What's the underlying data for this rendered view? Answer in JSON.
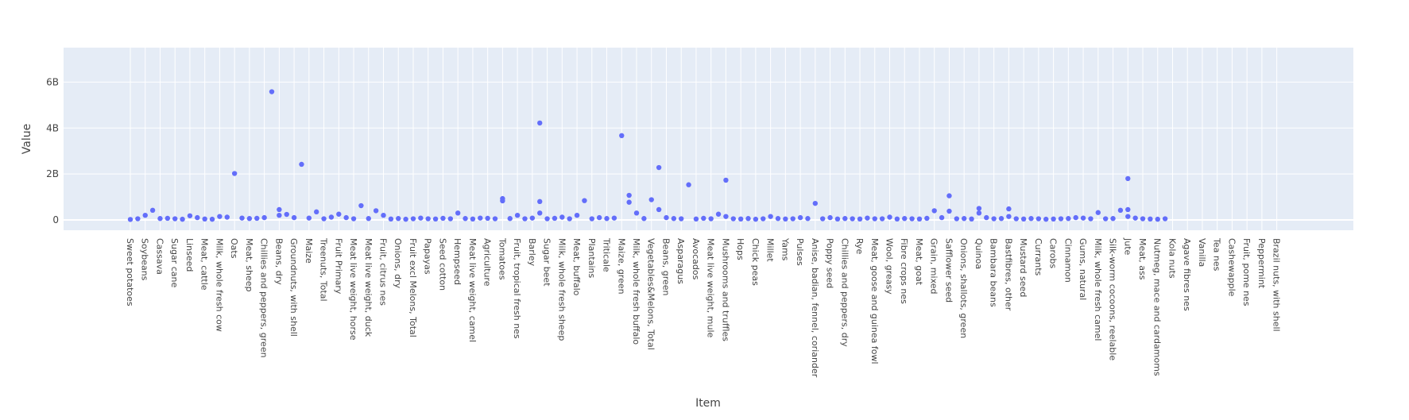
{
  "chart_data": {
    "type": "scatter",
    "title": "",
    "xlabel": "Item",
    "ylabel": "Value",
    "ylim": [
      -0.45,
      7.5
    ],
    "y_unit": "B",
    "yticks": [
      0,
      2,
      4,
      6
    ],
    "ytick_labels": [
      "0",
      "2B",
      "4B",
      "6B"
    ],
    "grid": true,
    "legend": "none",
    "marker_color": "#636efa",
    "plot_background": "#e5ecf6",
    "x_tick_labels": [
      "Sweet potatoes",
      "Soybeans",
      "Cassava",
      "Sugar cane",
      "Linseed",
      "Meat, cattle",
      "Milk, whole fresh cow",
      "Oats",
      "Meat, sheep",
      "Chillies and peppers, green",
      "Beans, dry",
      "Groundnuts, with shell",
      "Maize",
      "Treenuts, Total",
      "Fruit Primary",
      "Meat live weight, horse",
      "Meat live weight, duck",
      "Fruit, citrus nes",
      "Onions, dry",
      "Fruit excl Melons, Total",
      "Papayas",
      "Seed cotton",
      "Hempseed",
      "Meat live weight, camel",
      "Agriculture",
      "Tomatoes",
      "Fruit, tropical fresh nes",
      "Barley",
      "Sugar beet",
      "Milk, whole fresh sheep",
      "Meat, buffalo",
      "Plantains",
      "Triticale",
      "Maize, green",
      "Milk, whole fresh buffalo",
      "Vegetables&Melons, Total",
      "Beans, green",
      "Asparagus",
      "Avocados",
      "Meat live weight, mule",
      "Mushrooms and truffles",
      "Hops",
      "Chick peas",
      "Millet",
      "Yams",
      "Pulses",
      "Anise, badian, fennel, coriander",
      "Poppy seed",
      "Chillies and peppers, dry",
      "Rye",
      "Meat, goose and guinea fowl",
      "Wool, greasy",
      "Fibre crops nes",
      "Meat, goat",
      "Grain, mixed",
      "Safflower seed",
      "Onions, shallots, green",
      "Quinoa",
      "Bambara beans",
      "Bastfibres, other",
      "Mustard seed",
      "Currants",
      "Carobs",
      "Cinnamon",
      "Gums, natural",
      "Milk, whole fresh camel",
      "Silk-worm cocoons, reelable",
      "Jute",
      "Meat, ass",
      "Nutmeg, mace and cardamoms",
      "Kola nuts",
      "Agave fibres nes",
      "Vanilla",
      "Tea nes",
      "Cashewapple",
      "Fruit, pome nes",
      "Peppermint",
      "Brazil nuts, with shell"
    ],
    "x_categories_per_tick": 2,
    "x_category_count": 156,
    "points": [
      [
        0,
        0.02
      ],
      [
        1,
        0.05
      ],
      [
        2,
        0.2
      ],
      [
        3,
        0.42
      ],
      [
        4,
        0.06
      ],
      [
        5,
        0.07
      ],
      [
        6,
        0.05
      ],
      [
        7,
        0.03
      ],
      [
        8,
        0.18
      ],
      [
        9,
        0.1
      ],
      [
        10,
        0.04
      ],
      [
        11,
        0.03
      ],
      [
        12,
        0.15
      ],
      [
        13,
        0.12
      ],
      [
        14,
        2.02
      ],
      [
        15,
        0.08
      ],
      [
        16,
        0.06
      ],
      [
        17,
        0.07
      ],
      [
        18,
        0.1
      ],
      [
        19,
        5.58
      ],
      [
        20,
        0.45
      ],
      [
        20,
        0.2
      ],
      [
        21,
        0.24
      ],
      [
        22,
        0.1
      ],
      [
        23,
        2.42
      ],
      [
        24,
        0.08
      ],
      [
        25,
        0.35
      ],
      [
        26,
        0.05
      ],
      [
        27,
        0.12
      ],
      [
        28,
        0.25
      ],
      [
        29,
        0.1
      ],
      [
        30,
        0.05
      ],
      [
        31,
        0.62
      ],
      [
        32,
        0.06
      ],
      [
        33,
        0.4
      ],
      [
        34,
        0.2
      ],
      [
        35,
        0.04
      ],
      [
        36,
        0.06
      ],
      [
        37,
        0.03
      ],
      [
        38,
        0.05
      ],
      [
        39,
        0.08
      ],
      [
        40,
        0.05
      ],
      [
        41,
        0.04
      ],
      [
        42,
        0.07
      ],
      [
        43,
        0.05
      ],
      [
        44,
        0.3
      ],
      [
        45,
        0.06
      ],
      [
        46,
        0.04
      ],
      [
        47,
        0.08
      ],
      [
        48,
        0.07
      ],
      [
        49,
        0.05
      ],
      [
        50,
        0.83
      ],
      [
        50,
        0.93
      ],
      [
        51,
        0.06
      ],
      [
        52,
        0.2
      ],
      [
        53,
        0.05
      ],
      [
        54,
        0.08
      ],
      [
        55,
        4.22
      ],
      [
        55,
        0.3
      ],
      [
        55,
        0.8
      ],
      [
        56,
        0.05
      ],
      [
        57,
        0.07
      ],
      [
        58,
        0.12
      ],
      [
        59,
        0.05
      ],
      [
        60,
        0.2
      ],
      [
        61,
        0.84
      ],
      [
        62,
        0.05
      ],
      [
        63,
        0.1
      ],
      [
        64,
        0.06
      ],
      [
        65,
        0.08
      ],
      [
        66,
        3.67
      ],
      [
        67,
        1.07
      ],
      [
        67,
        0.77
      ],
      [
        68,
        0.3
      ],
      [
        69,
        0.06
      ],
      [
        70,
        0.88
      ],
      [
        71,
        2.28
      ],
      [
        71,
        0.45
      ],
      [
        72,
        0.1
      ],
      [
        73,
        0.06
      ],
      [
        74,
        0.05
      ],
      [
        75,
        1.53
      ],
      [
        76,
        0.04
      ],
      [
        77,
        0.07
      ],
      [
        78,
        0.05
      ],
      [
        79,
        0.25
      ],
      [
        80,
        1.73
      ],
      [
        80,
        0.15
      ],
      [
        81,
        0.05
      ],
      [
        82,
        0.04
      ],
      [
        83,
        0.06
      ],
      [
        84,
        0.03
      ],
      [
        85,
        0.05
      ],
      [
        86,
        0.15
      ],
      [
        87,
        0.06
      ],
      [
        88,
        0.04
      ],
      [
        89,
        0.05
      ],
      [
        90,
        0.1
      ],
      [
        91,
        0.06
      ],
      [
        92,
        0.72
      ],
      [
        93,
        0.05
      ],
      [
        94,
        0.1
      ],
      [
        95,
        0.04
      ],
      [
        96,
        0.06
      ],
      [
        97,
        0.05
      ],
      [
        98,
        0.04
      ],
      [
        99,
        0.08
      ],
      [
        100,
        0.05
      ],
      [
        101,
        0.05
      ],
      [
        102,
        0.12
      ],
      [
        103,
        0.04
      ],
      [
        104,
        0.06
      ],
      [
        105,
        0.05
      ],
      [
        106,
        0.04
      ],
      [
        107,
        0.07
      ],
      [
        108,
        0.4
      ],
      [
        109,
        0.1
      ],
      [
        110,
        1.05
      ],
      [
        110,
        0.38
      ],
      [
        111,
        0.05
      ],
      [
        112,
        0.06
      ],
      [
        113,
        0.04
      ],
      [
        114,
        0.5
      ],
      [
        114,
        0.3
      ],
      [
        115,
        0.1
      ],
      [
        116,
        0.05
      ],
      [
        117,
        0.06
      ],
      [
        118,
        0.48
      ],
      [
        118,
        0.15
      ],
      [
        119,
        0.05
      ],
      [
        120,
        0.04
      ],
      [
        121,
        0.06
      ],
      [
        122,
        0.05
      ],
      [
        123,
        0.03
      ],
      [
        124,
        0.04
      ],
      [
        125,
        0.05
      ],
      [
        126,
        0.06
      ],
      [
        127,
        0.1
      ],
      [
        128,
        0.08
      ],
      [
        129,
        0.05
      ],
      [
        130,
        0.32
      ],
      [
        131,
        0.05
      ],
      [
        132,
        0.06
      ],
      [
        133,
        0.42
      ],
      [
        134,
        1.8
      ],
      [
        134,
        0.45
      ],
      [
        134,
        0.15
      ],
      [
        135,
        0.08
      ],
      [
        136,
        0.05
      ],
      [
        137,
        0.04
      ],
      [
        138,
        0.03
      ],
      [
        139,
        0.05
      ]
    ]
  }
}
